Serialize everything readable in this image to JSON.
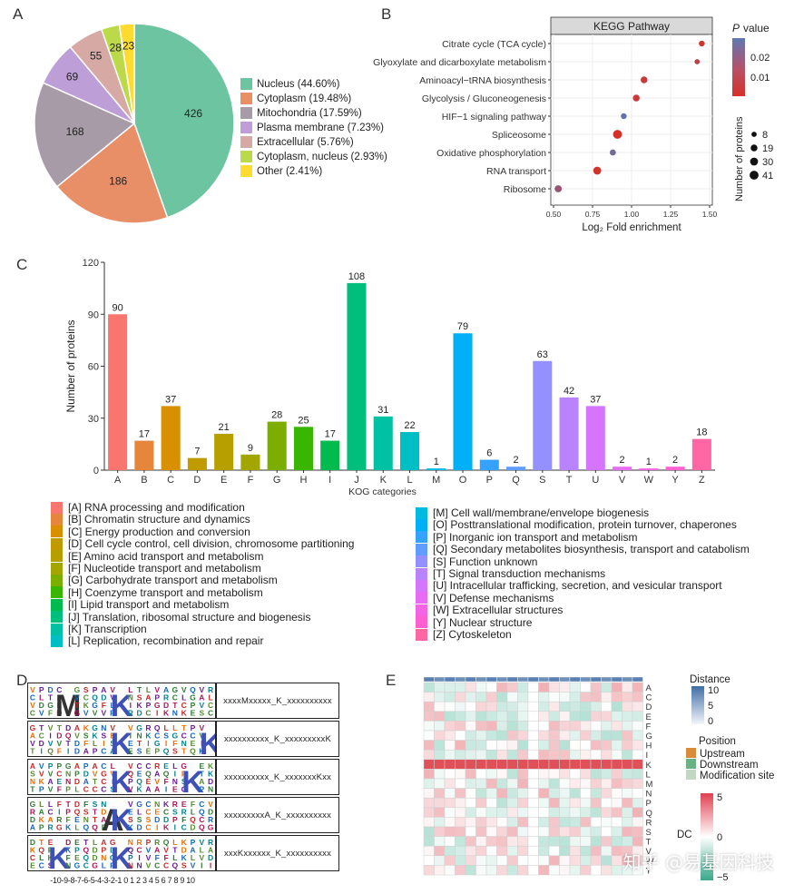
{
  "panels": {
    "a": "A",
    "b": "B",
    "c": "C",
    "d": "D",
    "e": "E"
  },
  "pie": {
    "type": "pie",
    "slices": [
      {
        "label": "Nucleus (44.60%)",
        "value": 426,
        "color": "#6cc4a1"
      },
      {
        "label": "Cytoplasm (19.48%)",
        "value": 186,
        "color": "#e98f68"
      },
      {
        "label": "Mitochondria (17.59%)",
        "value": 168,
        "color": "#a79ba8"
      },
      {
        "label": "Plasma membrane (7.23%)",
        "value": 69,
        "color": "#bd9ed6"
      },
      {
        "label": "Extracellular (5.76%)",
        "value": 55,
        "color": "#d7a9a4"
      },
      {
        "label": "Cytoplasm, nucleus (2.93%)",
        "value": 28,
        "color": "#bcd94a"
      },
      {
        "label": "Other (2.41%)",
        "value": 23,
        "color": "#fddb2f"
      }
    ]
  },
  "kegg": {
    "type": "scatter",
    "title": "KEGG Pathway",
    "xlabel": "Log₂ Fold enrichment",
    "xticks": [
      "0.50",
      "0.75",
      "1.00",
      "1.25",
      "1.50"
    ],
    "xlim": [
      0.5,
      1.5
    ],
    "pathways": [
      {
        "name": "Citrate cycle (TCA cycle)",
        "x": 1.45,
        "p": 0.004,
        "n": 12
      },
      {
        "name": "Glyoxylate and dicarboxylate metabolism",
        "x": 1.42,
        "p": 0.008,
        "n": 8
      },
      {
        "name": "Aminoacyl−tRNA biosynthesis",
        "x": 1.08,
        "p": 0.006,
        "n": 19
      },
      {
        "name": "Glycolysis / Gluconeogenesis",
        "x": 1.03,
        "p": 0.005,
        "n": 19
      },
      {
        "name": "HIF−1 signaling pathway",
        "x": 0.95,
        "p": 0.025,
        "n": 12
      },
      {
        "name": "Spliceosome",
        "x": 0.91,
        "p": 0.002,
        "n": 41
      },
      {
        "name": "Oxidative phosphorylation",
        "x": 0.88,
        "p": 0.022,
        "n": 14
      },
      {
        "name": "RNA transport",
        "x": 0.78,
        "p": 0.003,
        "n": 30
      },
      {
        "name": "Ribosome",
        "x": 0.53,
        "p": 0.015,
        "n": 22
      }
    ],
    "pvalue_title": "P value",
    "pvalue_ticks": [
      "0.02",
      "0.01"
    ],
    "size_title": "Number of proteins",
    "size_legend": [
      "8",
      "19",
      "30",
      "41"
    ]
  },
  "kog": {
    "type": "bar",
    "ylabel": "Number of proteins",
    "xlabel": "KOG categories",
    "ylim": [
      0,
      120
    ],
    "yticks": [
      "0",
      "30",
      "60",
      "90",
      "120"
    ],
    "categories": [
      "A",
      "B",
      "C",
      "D",
      "E",
      "F",
      "G",
      "H",
      "I",
      "J",
      "K",
      "L",
      "M",
      "O",
      "P",
      "Q",
      "S",
      "T",
      "U",
      "V",
      "W",
      "Y",
      "Z"
    ],
    "values": [
      90,
      17,
      37,
      7,
      21,
      9,
      28,
      25,
      17,
      108,
      31,
      22,
      1,
      79,
      6,
      2,
      63,
      42,
      37,
      2,
      1,
      2,
      18
    ],
    "colors": [
      "#f8766d",
      "#e6863b",
      "#d89000",
      "#c09b00",
      "#b79f00",
      "#a3a500",
      "#7cae00",
      "#39b600",
      "#00bb4e",
      "#00bf7d",
      "#00c1a3",
      "#00bfc4",
      "#00bae0",
      "#00b0f6",
      "#35a2ff",
      "#619cff",
      "#9590ff",
      "#b983ff",
      "#d575fe",
      "#e76bf3",
      "#f564e3",
      "#fd61d1",
      "#ff67a4"
    ],
    "legend": [
      "[A] RNA processing and modification",
      "[B] Chromatin structure and dynamics",
      "[C] Energy production and conversion",
      "[D] Cell cycle control, cell division, chromosome partitioning",
      "[E] Amino acid transport and metabolism",
      "[F] Nucleotide transport and metabolism",
      "[G] Carbohydrate transport and metabolism",
      "[H] Coenzyme transport and metabolism",
      "[I] Lipid transport and metabolism",
      "[J] Translation, ribosomal structure and biogenesis",
      "[K] Transcription",
      "[L] Replication, recombination and repair",
      "[M] Cell wall/membrane/envelope biogenesis",
      "[O] Posttranslational modification, protein turnover, chaperones",
      "[P] Inorganic ion transport and metabolism",
      "[Q] Secondary metabolites biosynthesis, transport and catabolism",
      "[S] Function unknown",
      "[T] Signal transduction mechanisms",
      "[U] Intracellular trafficking, secretion, and vesicular transport",
      "[V] Defense mechanisms",
      "[W] Extracellular structures",
      "[Y] Nuclear structure",
      "[Z] Cytoskeleton"
    ]
  },
  "motifs": {
    "sequences": [
      "xxxxMxxxxx_K_xxxxxxxxxx",
      "xxxxxxxxxx_K_xxxxxxxxxK",
      "xxxxxxxxxx_K_xxxxxxxKxx",
      "xxxxxxxxxA_K_xxxxxxxxxx",
      "xxxKxxxxxx_K_xxxxxxxxxx"
    ],
    "axis_label": "-10-9-8-7-6-5-4-3-2-1 0 1 2 3 4 5 6 7 8 9 10"
  },
  "heatmap": {
    "type": "heatmap",
    "rows": [
      "A",
      "C",
      "D",
      "E",
      "F",
      "G",
      "H",
      "I",
      "K",
      "L",
      "M",
      "N",
      "P",
      "Q",
      "R",
      "S",
      "T",
      "V",
      "W",
      "Y"
    ],
    "n_cols": 21,
    "distance_title": "Distance",
    "distance_ticks": [
      "10",
      "5",
      "0"
    ],
    "position_title": "Position",
    "position_legend": [
      {
        "label": "Upstream",
        "color": "#d98b3a"
      },
      {
        "label": "Downstream",
        "color": "#6ab186"
      },
      {
        "label": "Modification site",
        "color": "#c2d8c4"
      }
    ],
    "dc_title": "DC",
    "dc_ticks": [
      "5",
      "0",
      "−5"
    ]
  },
  "watermark": "知乎 @易基因科技"
}
